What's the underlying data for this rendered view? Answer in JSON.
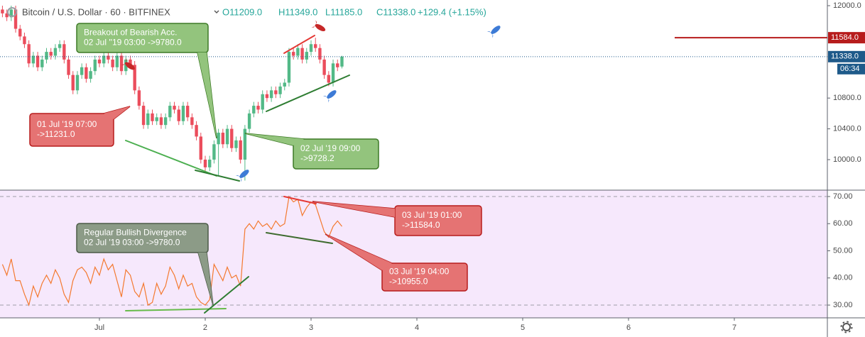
{
  "chart_data": [
    {
      "type": "candlestick",
      "title": "Bitcoin / U.S. Dollar · 60 · BITFINEX",
      "ohlc_labels": [
        "O11209.0",
        "H11349.0",
        "L11185.0",
        "C11338.0"
      ],
      "change": "+129.4 (+1.15%)",
      "x": [
        -22,
        -21,
        -20,
        -19,
        -18,
        -17,
        -16,
        -15,
        -14,
        -13,
        -12,
        -11,
        -10,
        -9,
        -8,
        -7,
        -6,
        -5,
        -4,
        -3,
        -2,
        -1,
        0,
        1,
        2,
        3,
        4,
        5,
        6,
        7,
        8,
        9,
        10,
        11,
        12,
        13,
        14,
        15,
        16,
        17,
        18,
        19,
        20,
        21,
        22,
        23,
        24,
        25,
        26,
        27,
        28,
        29,
        30,
        31,
        32,
        33,
        34,
        35,
        36,
        37,
        38,
        39,
        40,
        41,
        42,
        43,
        44,
        45,
        46,
        47,
        48,
        49,
        50,
        51,
        52,
        53,
        54,
        55
      ],
      "open": [
        11950,
        11900,
        11850,
        11950,
        11700,
        11600,
        11500,
        11250,
        11350,
        11200,
        11300,
        11400,
        11350,
        11450,
        11500,
        11300,
        11100,
        10900,
        11100,
        11200,
        11050,
        11150,
        11300,
        11250,
        11350,
        11300,
        11200,
        11350,
        11150,
        11300,
        11231,
        10900,
        10700,
        10450,
        10600,
        10500,
        10550,
        10450,
        10550,
        10700,
        10650,
        10500,
        10700,
        10550,
        10450,
        10300,
        10000,
        9900,
        10000,
        10200,
        10350,
        10200,
        10400,
        10150,
        10250,
        10000,
        10400,
        10600,
        10700,
        10650,
        10850,
        10800,
        10900,
        10850,
        10950,
        11000,
        11400,
        11350,
        11450,
        11300,
        11400,
        11500,
        11450,
        11300,
        11100,
        11000,
        11250,
        11209
      ],
      "high": [
        12000,
        11950,
        12000,
        12000,
        11750,
        11650,
        11550,
        11400,
        11400,
        11350,
        11450,
        11450,
        11500,
        11550,
        11550,
        11350,
        11150,
        11150,
        11250,
        11250,
        11200,
        11350,
        11350,
        11400,
        11400,
        11350,
        11400,
        11400,
        11350,
        11350,
        11281,
        10950,
        10750,
        10650,
        10650,
        10600,
        10600,
        10600,
        10750,
        10750,
        10700,
        10750,
        10750,
        10600,
        10500,
        10350,
        10050,
        10050,
        10250,
        10400,
        10400,
        10450,
        10450,
        10300,
        10300,
        10450,
        10650,
        10750,
        10750,
        10900,
        10900,
        10950,
        10950,
        11000,
        11050,
        11450,
        11450,
        11500,
        11500,
        11450,
        11550,
        11584,
        11500,
        11350,
        11150,
        11300,
        11300,
        11349
      ],
      "low": [
        11850,
        11800,
        11800,
        11650,
        11550,
        11450,
        11200,
        11200,
        11150,
        11150,
        11250,
        11300,
        11300,
        11400,
        11250,
        11050,
        10850,
        10850,
        11050,
        11000,
        11000,
        11100,
        11200,
        11200,
        11250,
        11150,
        11150,
        11100,
        11100,
        11181,
        10850,
        10650,
        10400,
        10400,
        10450,
        10450,
        10400,
        10400,
        10500,
        10600,
        10450,
        10450,
        10500,
        10400,
        10250,
        9950,
        9850,
        9850,
        9950,
        9780,
        10150,
        10150,
        10100,
        10100,
        9950,
        9728,
        10350,
        10550,
        10600,
        10600,
        10750,
        10750,
        10800,
        10800,
        10900,
        10950,
        11300,
        11300,
        11250,
        11250,
        11350,
        11400,
        11250,
        11050,
        10955,
        10950,
        11150,
        11185
      ],
      "close": [
        11900,
        11850,
        11950,
        11700,
        11600,
        11500,
        11250,
        11350,
        11200,
        11300,
        11400,
        11350,
        11450,
        11500,
        11300,
        11100,
        10900,
        11100,
        11200,
        11050,
        11150,
        11300,
        11250,
        11350,
        11300,
        11200,
        11350,
        11150,
        11300,
        11231,
        10900,
        10700,
        10450,
        10600,
        10500,
        10550,
        10450,
        10550,
        10700,
        10650,
        10500,
        10700,
        10550,
        10450,
        10300,
        10000,
        9900,
        10000,
        10200,
        10350,
        10200,
        10400,
        10150,
        10250,
        10000,
        10400,
        10600,
        10700,
        10650,
        10850,
        10800,
        10900,
        10850,
        10950,
        11000,
        11400,
        11350,
        11450,
        11300,
        11400,
        11500,
        11450,
        11300,
        11100,
        11000,
        11250,
        11200,
        11338
      ],
      "up_color": "#53b987",
      "down_color": "#eb4d5c",
      "xlim": [
        -22.55,
        165.1
      ],
      "ylim": [
        9603.7,
        12073.7
      ],
      "yticks": [
        {
          "value": 10000,
          "label": "10000.0"
        },
        {
          "value": 10400,
          "label": "10400.0"
        },
        {
          "value": 10800,
          "label": "10800.0"
        },
        {
          "value": 12000,
          "label": "12000.0"
        }
      ],
      "price_tags": [
        {
          "value": 11584,
          "label": "11584.0",
          "color": "#b71c1c",
          "line": "solid"
        },
        {
          "value": 11338,
          "label": "11338.0",
          "color": "#1e5a8a",
          "line": "dotted"
        }
      ],
      "countdown": "06:34",
      "annotations": [
        {
          "lines": [
            "Breakout of Bearish Acc.",
            "02 Jul ''19 03:00 ->9780.0"
          ],
          "fill": "#93c47d",
          "border": "#3d7a26"
        },
        {
          "lines": [
            "01 Jul '19 07:00",
            "->11231.0"
          ],
          "fill": "#e57373",
          "border": "#b71c1c"
        },
        {
          "lines": [
            "02 Jul '19 09:00",
            "->9728.2"
          ],
          "fill": "#93c47d",
          "border": "#3d7a26"
        }
      ]
    },
    {
      "type": "line",
      "x": [
        -22,
        -21,
        -20,
        -19,
        -18,
        -17,
        -16,
        -15,
        -14,
        -13,
        -12,
        -11,
        -10,
        -9,
        -8,
        -7,
        -6,
        -5,
        -4,
        -3,
        -2,
        -1,
        0,
        1,
        2,
        3,
        4,
        5,
        6,
        7,
        8,
        9,
        10,
        11,
        12,
        13,
        14,
        15,
        16,
        17,
        18,
        19,
        20,
        21,
        22,
        23,
        24,
        25,
        26,
        27,
        28,
        29,
        30,
        31,
        32,
        33,
        34,
        35,
        36,
        37,
        38,
        39,
        40,
        41,
        42,
        43,
        44,
        45,
        46,
        47,
        48,
        49,
        50,
        51,
        52,
        53,
        54,
        55
      ],
      "values": [
        45,
        41,
        47,
        39,
        39,
        34,
        30,
        37,
        33,
        38,
        41,
        38,
        43,
        40,
        34,
        31,
        39,
        43,
        44,
        42,
        38,
        44,
        41,
        47,
        43,
        45,
        39,
        33,
        43,
        41,
        35,
        33,
        38,
        30,
        31,
        38,
        34,
        37,
        44,
        41,
        36,
        41,
        37,
        38,
        33,
        31,
        30,
        32,
        45,
        42,
        39,
        44,
        40,
        41,
        37,
        58,
        60,
        58,
        61,
        59,
        60,
        58,
        61,
        59,
        60,
        70,
        68,
        69,
        63,
        66,
        68,
        67,
        62,
        57,
        55,
        59,
        61,
        59
      ],
      "color": "#f4792f",
      "band": [
        30,
        70
      ],
      "xlim": [
        -22.55,
        165.1
      ],
      "xticks": [
        {
          "value": 0,
          "label": "Jul"
        },
        {
          "value": 24,
          "label": "2"
        },
        {
          "value": 48,
          "label": "3"
        },
        {
          "value": 72,
          "label": "4"
        },
        {
          "value": 96,
          "label": "5"
        },
        {
          "value": 120,
          "label": "6"
        },
        {
          "value": 144,
          "label": "7"
        }
      ],
      "ylim": [
        25.3,
        72.35
      ],
      "yticks": [
        {
          "value": 30,
          "label": "30.00"
        },
        {
          "value": 40,
          "label": "40.00"
        },
        {
          "value": 50,
          "label": "50.00"
        },
        {
          "value": 60,
          "label": "60.00"
        },
        {
          "value": 70,
          "label": "70.00"
        }
      ],
      "annotations": [
        {
          "lines": [
            "Regular Bullish Divergence",
            "02 Jul '19 03:00 ->9780.0"
          ],
          "fill": "#8c9b87",
          "border": "#4b5a46"
        },
        {
          "lines": [
            "03 Jul '19 01:00",
            "->11584.0"
          ],
          "fill": "#e57373",
          "border": "#b71c1c"
        },
        {
          "lines": [
            "03 Jul '19 04:00",
            "->10955.0"
          ],
          "fill": "#e57373",
          "border": "#b71c1c"
        }
      ]
    }
  ]
}
